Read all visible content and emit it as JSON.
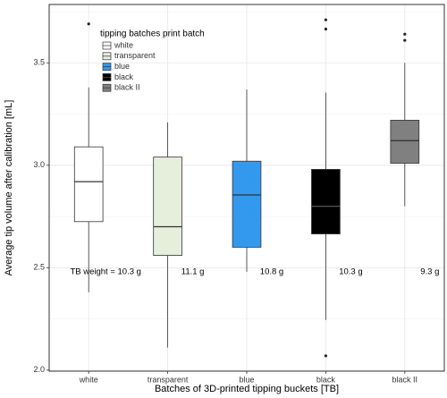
{
  "chart_data": {
    "type": "box",
    "x_label": "Batches of 3D-printed tipping buckets [TB]",
    "y_label": "Average tip volume after calibration [mL]",
    "categories": [
      "white",
      "transparent",
      "blue",
      "black",
      "black II"
    ],
    "ylim": [
      1.995,
      3.785
    ],
    "yticks": [
      {
        "value": 2,
        "label": "2.0"
      },
      {
        "value": 2.5,
        "label": "2.5"
      },
      {
        "value": 3,
        "label": "3.0"
      },
      {
        "value": 3.5,
        "label": "3.5"
      }
    ],
    "grid": true,
    "legend_title": "tipping batches print batch",
    "series": [
      {
        "name": "white",
        "color": "#ffffff",
        "min": 2.38,
        "q1": 2.725,
        "median": 2.92,
        "q3": 3.09,
        "max": 3.38,
        "outliers": [
          3.69
        ]
      },
      {
        "name": "transparent",
        "color": "#e6eedc",
        "min": 2.11,
        "q1": 2.56,
        "median": 2.7,
        "q3": 3.04,
        "max": 3.21,
        "outliers": []
      },
      {
        "name": "blue",
        "color": "#3399ee",
        "min": 2.48,
        "q1": 2.6,
        "median": 2.855,
        "q3": 3.02,
        "max": 3.37,
        "outliers": []
      },
      {
        "name": "black",
        "color": "#000000",
        "min": 2.245,
        "q1": 2.665,
        "median": 2.8,
        "q3": 2.98,
        "max": 3.355,
        "outliers": [
          2.07,
          3.71,
          3.665
        ]
      },
      {
        "name": "black II",
        "color": "#808080",
        "min": 2.8,
        "q1": 3.01,
        "median": 3.12,
        "q3": 3.22,
        "max": 3.5,
        "outliers": [
          3.64,
          3.61
        ]
      }
    ],
    "annotation_y": 2.48,
    "annotations": [
      "TB weight = 10.3 g",
      "11.1 g",
      "10.8 g",
      "10.3 g",
      "9.3 g"
    ]
  }
}
